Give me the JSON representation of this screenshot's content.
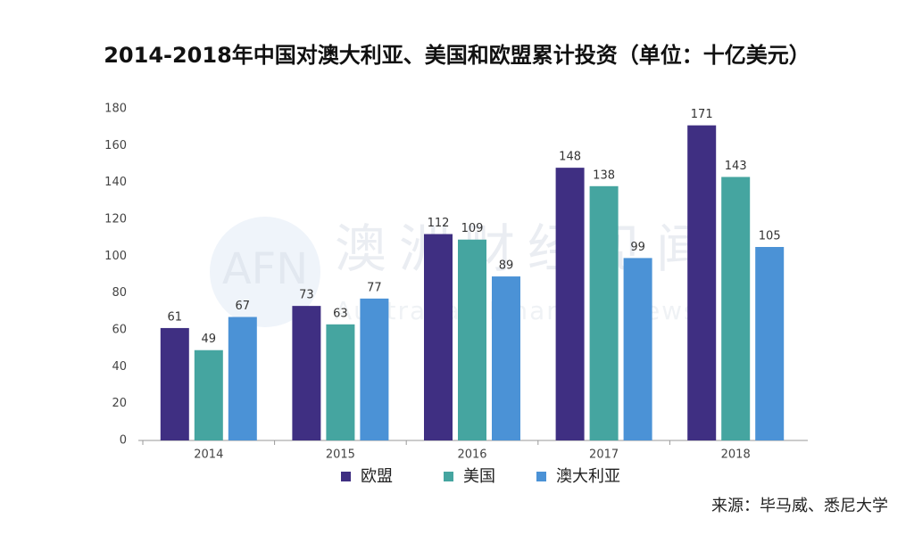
{
  "chart_data": {
    "type": "bar",
    "title": "2014-2018年中国对澳大利亚、美国和欧盟累计投资（单位：十亿美元）",
    "categories": [
      "2014",
      "2015",
      "2016",
      "2017",
      "2018"
    ],
    "series": [
      {
        "name": "欧盟",
        "color": "#3f2f82",
        "values": [
          61,
          73,
          112,
          148,
          171
        ]
      },
      {
        "name": "美国",
        "color": "#45a5a0",
        "values": [
          49,
          63,
          109,
          138,
          143
        ]
      },
      {
        "name": "澳大利亚",
        "color": "#4b92d6",
        "values": [
          67,
          77,
          89,
          99,
          105
        ]
      }
    ],
    "ylim": [
      0,
      180
    ],
    "yticks": [
      0,
      20,
      40,
      60,
      80,
      100,
      120,
      140,
      160,
      180
    ],
    "grid": false,
    "legend": "bottom",
    "source": "来源：毕马威、悉尼大学",
    "watermark": {
      "logo": "AFN",
      "name": "澳洲财经见闻",
      "subtitle": "Australian Financial News"
    }
  }
}
